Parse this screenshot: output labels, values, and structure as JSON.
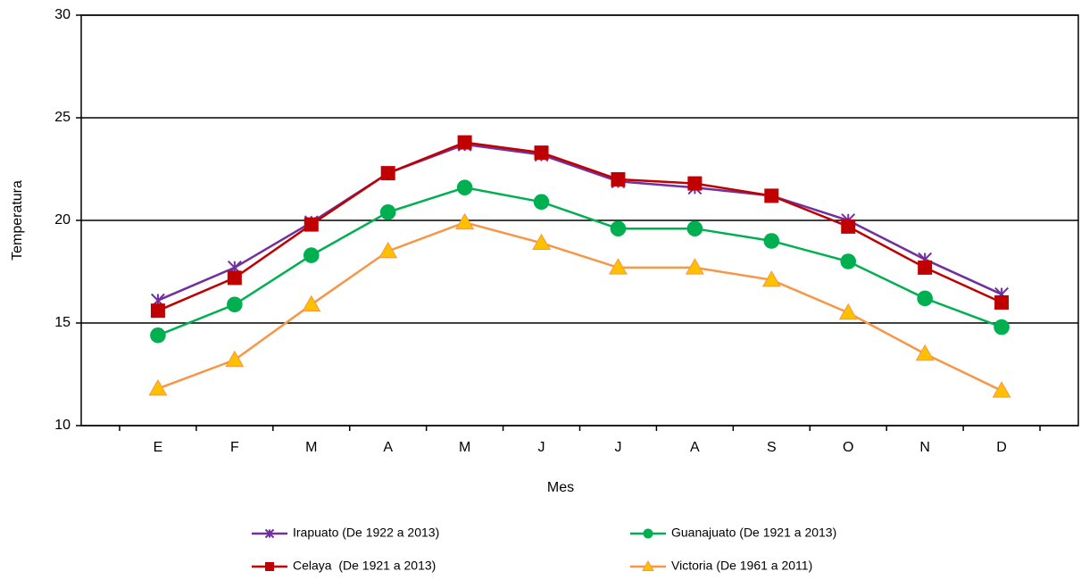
{
  "chart_data": {
    "type": "line",
    "xlabel": "Mes",
    "ylabel": "Temperatura",
    "categories": [
      "E",
      "F",
      "M",
      "A",
      "M",
      "J",
      "J",
      "A",
      "S",
      "O",
      "N",
      "D"
    ],
    "ylim": [
      10,
      30
    ],
    "yticks": [
      10,
      15,
      20,
      25,
      30
    ],
    "grid": true,
    "series": [
      {
        "name": "Irapuato (De 1922 a 2013)",
        "color": "#7030a0",
        "marker": "x",
        "values": [
          16.1,
          17.7,
          19.9,
          22.3,
          23.7,
          23.2,
          21.9,
          21.6,
          21.2,
          20.0,
          18.1,
          16.4
        ]
      },
      {
        "name": "Guanajuato (De 1921 a 2013)",
        "color": "#00b050",
        "marker": "circle",
        "values": [
          14.4,
          15.9,
          18.3,
          20.4,
          21.6,
          20.9,
          19.6,
          19.6,
          19.0,
          18.0,
          16.2,
          14.8
        ]
      },
      {
        "name": "Celaya  (De 1921 a 2013)",
        "color": "#c00000",
        "marker": "square",
        "values": [
          15.6,
          17.2,
          19.8,
          22.3,
          23.8,
          23.3,
          22.0,
          21.8,
          21.2,
          19.7,
          17.7,
          16.0
        ]
      },
      {
        "name": "Victoria (De 1961 a 2011)",
        "color": "#f79646",
        "marker": "triangle",
        "marker_fill": "#ffc000",
        "values": [
          11.8,
          13.2,
          15.9,
          18.5,
          19.9,
          18.9,
          17.7,
          17.7,
          17.1,
          15.5,
          13.5,
          11.7
        ]
      }
    ]
  }
}
